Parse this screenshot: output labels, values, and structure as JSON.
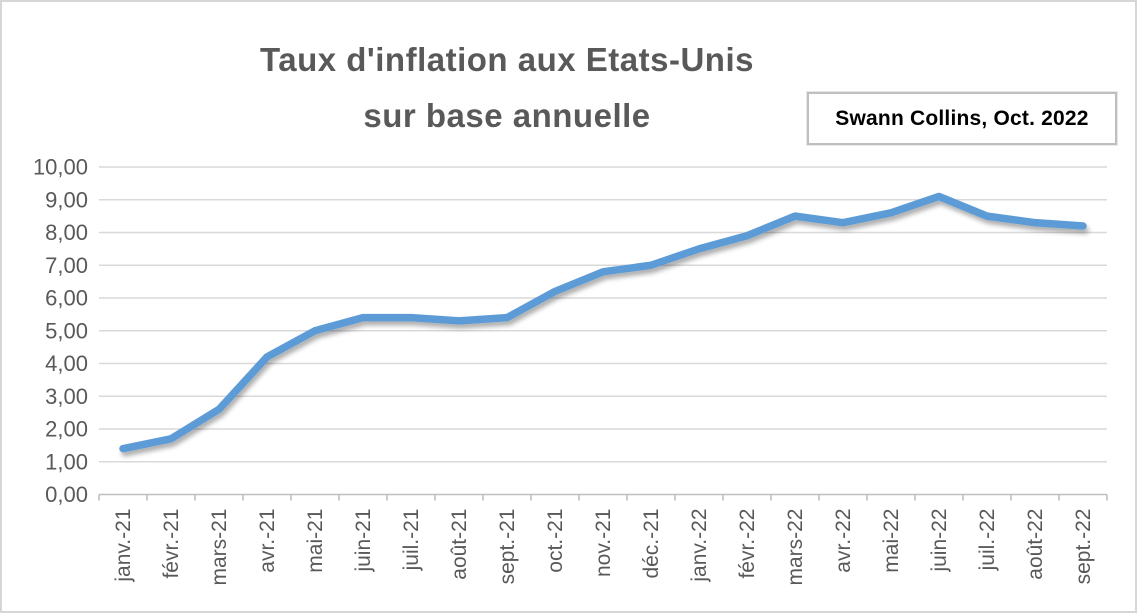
{
  "title": {
    "line1": "Taux d'inflation aux Etats-Unis",
    "line2": "sur base annuelle"
  },
  "source_label": "Swann Collins, Oct. 2022",
  "colors": {
    "line": "#5B9BD5",
    "title_text": "#595959",
    "axis_label_text": "#595959",
    "gridline": "#d9d9d9",
    "axis_line": "#bfbfbf",
    "source_border": "#bfbfbf",
    "source_text": "#000000",
    "page_border": "#d6d6d6"
  },
  "chart_data": {
    "type": "line",
    "title": "Taux d'inflation aux Etats-Unis sur base annuelle",
    "xlabel": "",
    "ylabel": "",
    "ylim": [
      0,
      10
    ],
    "grid": true,
    "legend": "none",
    "categories": [
      "janv.-21",
      "févr.-21",
      "mars-21",
      "avr.-21",
      "mai-21",
      "juin-21",
      "juil.-21",
      "août-21",
      "sept.-21",
      "oct.-21",
      "nov.-21",
      "déc.-21",
      "janv.-22",
      "févr.-22",
      "mars-22",
      "avr.-22",
      "mai-22",
      "juin-22",
      "juil.-22",
      "août-22",
      "sept.-22"
    ],
    "series": [
      {
        "name": "Taux d'inflation",
        "values": [
          1.4,
          1.7,
          2.6,
          4.2,
          5.0,
          5.4,
          5.4,
          5.3,
          5.4,
          6.2,
          6.8,
          7.0,
          7.5,
          7.9,
          8.5,
          8.3,
          8.6,
          9.1,
          8.5,
          8.3,
          8.2
        ]
      }
    ],
    "y_tick_values": [
      0,
      1,
      2,
      3,
      4,
      5,
      6,
      7,
      8,
      9,
      10
    ],
    "y_tick_labels": [
      "0,00",
      "1,00",
      "2,00",
      "3,00",
      "4,00",
      "5,00",
      "6,00",
      "7,00",
      "8,00",
      "9,00",
      "10,00"
    ]
  }
}
